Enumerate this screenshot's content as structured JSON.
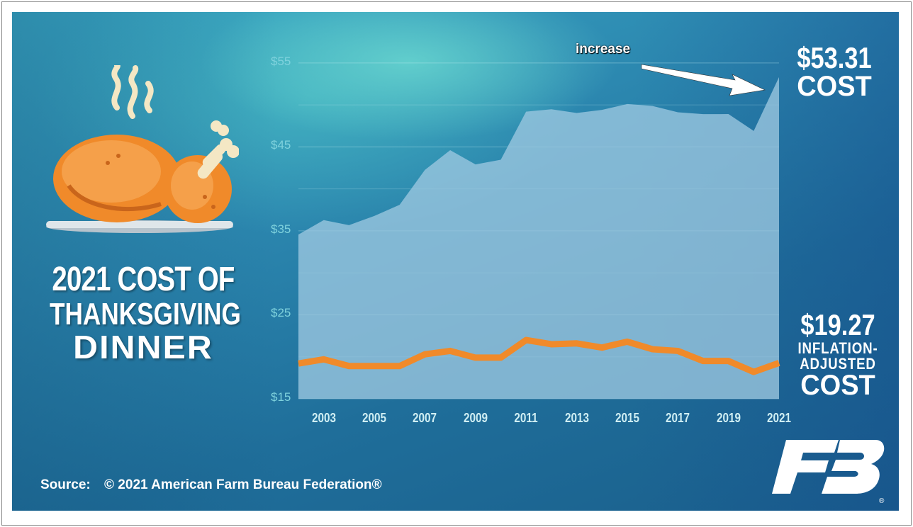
{
  "title": {
    "line1": "2021 COST OF",
    "line2": "THANKSGIVING",
    "line3": "DINNER"
  },
  "source": {
    "label": "Source:",
    "text": "© 2021 American Farm Bureau Federation®"
  },
  "annotation": "increase",
  "callouts": {
    "cost_value": "$53.31",
    "cost_label": "COST",
    "adjusted_value": "$19.27",
    "adjusted_label_1": "INFLATION-",
    "adjusted_label_2": "ADJUSTED",
    "adjusted_label_3": "COST"
  },
  "colors": {
    "area_fill": "#9cc8e0",
    "adjusted_line": "#f08a2a",
    "background": "#2a80ab"
  },
  "icons": [
    "turkey-icon",
    "afbf-logo-icon"
  ],
  "chart_data": {
    "type": "area",
    "x": [
      2002,
      2003,
      2004,
      2005,
      2006,
      2007,
      2008,
      2009,
      2010,
      2011,
      2012,
      2013,
      2014,
      2015,
      2016,
      2017,
      2018,
      2019,
      2020,
      2021
    ],
    "x_ticks": [
      "2003",
      "2005",
      "2007",
      "2009",
      "2011",
      "2013",
      "2015",
      "2017",
      "2019",
      "2021"
    ],
    "y_ticks": [
      "$55",
      "$45",
      "$35",
      "$25",
      "$15"
    ],
    "ylim": [
      15,
      56
    ],
    "series": [
      {
        "name": "COST",
        "kind": "area",
        "values": [
          34.56,
          36.28,
          35.68,
          36.78,
          38.1,
          42.26,
          44.61,
          42.91,
          43.47,
          49.2,
          49.48,
          49.04,
          49.41,
          50.11,
          49.87,
          49.12,
          48.9,
          48.91,
          46.9,
          53.31
        ]
      },
      {
        "name": "INFLATION-ADJUSTED COST",
        "kind": "line",
        "values": [
          19.2,
          19.7,
          18.9,
          18.9,
          18.9,
          20.3,
          20.7,
          19.9,
          19.9,
          22.0,
          21.5,
          21.6,
          21.1,
          21.8,
          20.9,
          20.7,
          19.5,
          19.5,
          18.2,
          19.27
        ]
      }
    ],
    "grid": true,
    "legend": "none"
  }
}
